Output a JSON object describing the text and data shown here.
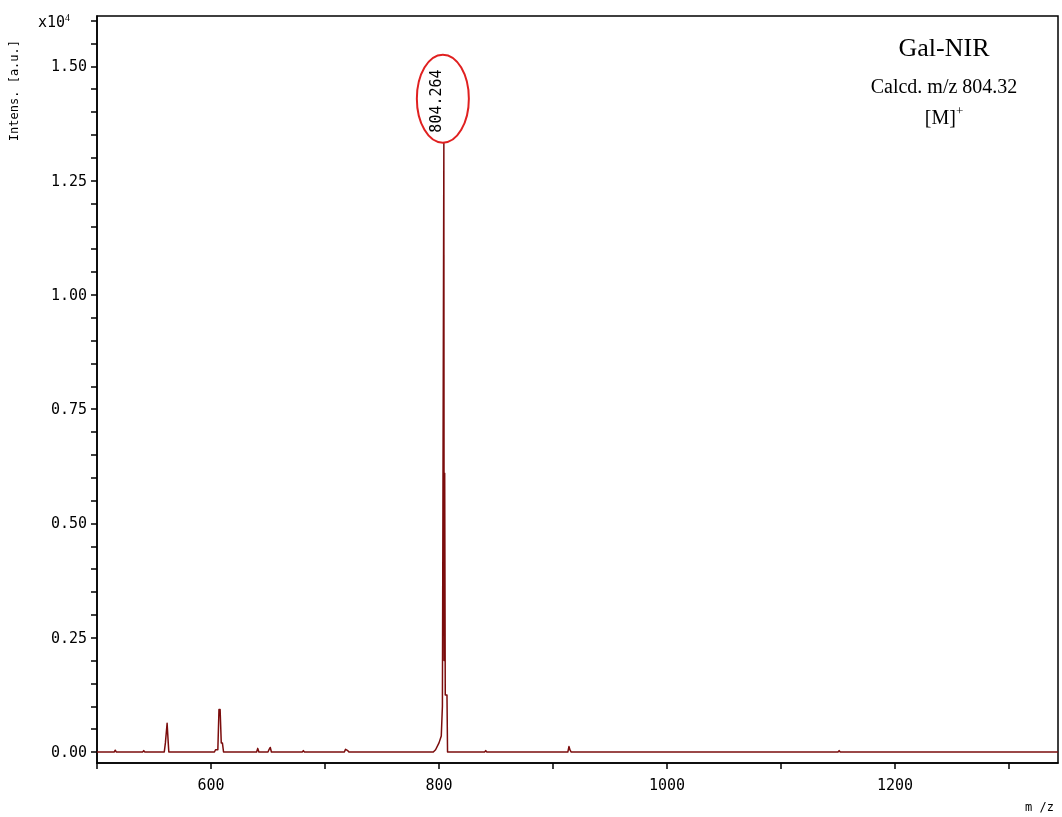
{
  "chart_data": {
    "type": "line",
    "xlabel": "m /z",
    "ylabel": "Intens. [a.u.]",
    "annotations": [
      "x10$^{4}$",
      "Gal-NIR",
      "Calcd. m/z 804.32",
      "[M]$^{+}$",
      {
        "text": "804.264",
        "x": 804.264,
        "y": 1.333
      }
    ],
    "series": [
      {
        "color": "#7b0c0c",
        "x": [
          500,
          515,
          516,
          517,
          540,
          541,
          542,
          559,
          560,
          561.5,
          562.5,
          563,
          603,
          604,
          606,
          607,
          608,
          609,
          610,
          611,
          640,
          641,
          642,
          650,
          651,
          652,
          653,
          680,
          681,
          682,
          717,
          718,
          720,
          721,
          795,
          797,
          800,
          802,
          803,
          804.264,
          804.5,
          805,
          805.5,
          807,
          807.5,
          840,
          841,
          842,
          913,
          914,
          915,
          916,
          1150,
          1151,
          1152,
          1343
        ],
        "values": [
          0,
          0,
          0.004,
          0,
          0,
          0.003,
          0,
          0,
          0.02,
          0.063,
          0.02,
          0,
          0,
          0.005,
          0.005,
          0.093,
          0.093,
          0.02,
          0.02,
          0,
          0,
          0.008,
          0,
          0,
          0.006,
          0.01,
          0,
          0,
          0.003,
          0,
          0,
          0.006,
          0.003,
          0,
          0,
          0.005,
          0.02,
          0.035,
          0.1,
          1.333,
          0.2,
          0.61,
          0.125,
          0.125,
          0,
          0,
          0.003,
          0,
          0,
          0.012,
          0.004,
          0,
          0,
          0.003,
          0,
          0
        ]
      }
    ],
    "xlim": [
      500,
      1343
    ],
    "xticks": [
      {
        "value": 500,
        "label": null
      },
      600,
      {
        "value": 700,
        "label": null
      },
      800,
      {
        "value": 900,
        "label": null
      },
      1000,
      {
        "value": 1100,
        "label": null
      },
      1200,
      {
        "value": 1300,
        "label": null
      }
    ],
    "ylim": [
      -0.024,
      1.61
    ],
    "yticks": [
      {
        "value": 0,
        "label": "0.00"
      },
      {
        "value": 0.05,
        "label": null
      },
      {
        "value": 0.1,
        "label": null
      },
      {
        "value": 0.15,
        "label": null
      },
      {
        "value": 0.2,
        "label": null
      },
      {
        "value": 0.25,
        "label": "0.25"
      },
      {
        "value": 0.3,
        "label": null
      },
      {
        "value": 0.35,
        "label": null
      },
      {
        "value": 0.4,
        "label": null
      },
      {
        "value": 0.45,
        "label": null
      },
      {
        "value": 0.5,
        "label": "0.50"
      },
      {
        "value": 0.55,
        "label": null
      },
      {
        "value": 0.6,
        "label": null
      },
      {
        "value": 0.65,
        "label": null
      },
      {
        "value": 0.7,
        "label": null
      },
      {
        "value": 0.75,
        "label": "0.75"
      },
      {
        "value": 0.8,
        "label": null
      },
      {
        "value": 0.85,
        "label": null
      },
      {
        "value": 0.9,
        "label": null
      },
      {
        "value": 0.95,
        "label": null
      },
      {
        "value": 1,
        "label": "1.00"
      },
      {
        "value": 1.05,
        "label": null
      },
      {
        "value": 1.1,
        "label": null
      },
      {
        "value": 1.15,
        "label": null
      },
      {
        "value": 1.2,
        "label": null
      },
      {
        "value": 1.25,
        "label": "1.25"
      },
      {
        "value": 1.3,
        "label": null
      },
      {
        "value": 1.35,
        "label": null
      },
      {
        "value": 1.4,
        "label": null
      },
      {
        "value": 1.45,
        "label": null
      },
      {
        "value": 1.5,
        "label": "1.50"
      },
      {
        "value": 1.55,
        "label": null
      },
      {
        "value": 1.6,
        "label": null
      }
    ],
    "grid": false,
    "marker": "none",
    "line_style": "solid"
  }
}
